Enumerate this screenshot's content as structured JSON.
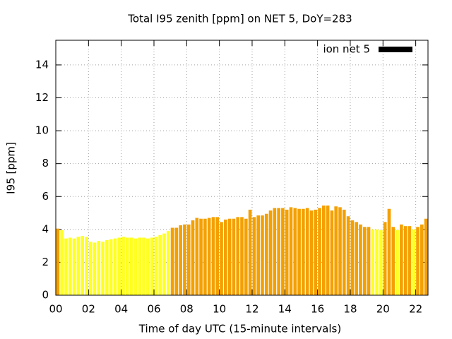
{
  "chart_data": {
    "type": "bar",
    "title": "Total I95 zenith [ppm] on NET 5, DoY=283",
    "x_label": "Time of day UTC (15-minute intervals)",
    "y_label": "I95 [ppm]",
    "x": [
      0,
      0.25,
      0.5,
      0.75,
      1,
      1.25,
      1.5,
      1.75,
      2,
      2.25,
      2.5,
      2.75,
      3,
      3.25,
      3.5,
      3.75,
      4,
      4.25,
      4.5,
      4.75,
      5,
      5.25,
      5.5,
      5.75,
      6,
      6.25,
      6.5,
      6.75,
      7,
      7.25,
      7.5,
      7.75,
      8,
      8.25,
      8.5,
      8.75,
      9,
      9.25,
      9.5,
      9.75,
      10,
      10.25,
      10.5,
      10.75,
      11,
      11.25,
      11.5,
      11.75,
      12,
      12.25,
      12.5,
      12.75,
      13,
      13.25,
      13.5,
      13.75,
      14,
      14.25,
      14.5,
      14.75,
      15,
      15.25,
      15.5,
      15.75,
      16,
      16.25,
      16.5,
      16.75,
      17,
      17.25,
      17.5,
      17.75,
      18,
      18.25,
      18.5,
      18.75,
      19,
      19.25,
      19.5,
      19.75,
      20,
      20.25,
      20.5,
      20.75,
      21,
      21.25,
      21.5,
      21.75,
      22,
      22.25,
      22.5
    ],
    "series": [
      {
        "name": "ion net 5",
        "color": "#000000",
        "values": [
          4.05,
          3.95,
          3.45,
          3.5,
          3.45,
          3.55,
          3.6,
          3.55,
          3.25,
          3.2,
          3.3,
          3.25,
          3.35,
          3.4,
          3.45,
          3.5,
          3.55,
          3.5,
          3.5,
          3.45,
          3.5,
          3.5,
          3.45,
          3.5,
          3.55,
          3.65,
          3.75,
          3.9,
          4.1,
          4.1,
          4.25,
          4.3,
          4.3,
          4.55,
          4.7,
          4.65,
          4.65,
          4.7,
          4.75,
          4.75,
          4.45,
          4.6,
          4.65,
          4.65,
          4.75,
          4.75,
          4.65,
          5.2,
          4.75,
          4.85,
          4.85,
          4.95,
          5.15,
          5.3,
          5.3,
          5.3,
          5.2,
          5.35,
          5.3,
          5.25,
          5.25,
          5.3,
          5.15,
          5.2,
          5.3,
          5.45,
          5.45,
          5.15,
          5.4,
          5.35,
          5.2,
          4.8,
          4.55,
          4.45,
          4.3,
          4.15,
          4.15,
          4.0,
          4.0,
          3.95,
          4.45,
          5.25,
          4.15,
          3.95,
          4.3,
          4.2,
          4.2,
          4.0,
          4.15,
          4.3,
          4.65
        ],
        "bar_colors": [
          "#f4a000",
          "#ffff22",
          "#ffff22",
          "#ffff22",
          "#ffff22",
          "#ffff22",
          "#ffff22",
          "#ffff22",
          "#ffff22",
          "#ffff22",
          "#ffff22",
          "#ffff22",
          "#ffff22",
          "#ffff22",
          "#ffff22",
          "#ffff22",
          "#ffff22",
          "#ffff22",
          "#ffff22",
          "#ffff22",
          "#ffff22",
          "#ffff22",
          "#ffff22",
          "#ffff22",
          "#ffff22",
          "#ffff22",
          "#ffff22",
          "#ffff22",
          "#f4a000",
          "#f4a000",
          "#f4a000",
          "#f4a000",
          "#f4a000",
          "#f4a000",
          "#f4a000",
          "#f4a000",
          "#f4a000",
          "#f4a000",
          "#f4a000",
          "#f4a000",
          "#f4a000",
          "#f4a000",
          "#f4a000",
          "#f4a000",
          "#f4a000",
          "#f4a000",
          "#f4a000",
          "#f4a000",
          "#f4a000",
          "#f4a000",
          "#f4a000",
          "#f4a000",
          "#f4a000",
          "#f4a000",
          "#f4a000",
          "#f4a000",
          "#f4a000",
          "#f4a000",
          "#f4a000",
          "#f4a000",
          "#f4a000",
          "#f4a000",
          "#f4a000",
          "#f4a000",
          "#f4a000",
          "#f4a000",
          "#f4a000",
          "#f4a000",
          "#f4a000",
          "#f4a000",
          "#f4a000",
          "#f4a000",
          "#f4a000",
          "#f4a000",
          "#f4a000",
          "#f4a000",
          "#f4a000",
          "#ffff22",
          "#ffff22",
          "#ffff22",
          "#f4a000",
          "#f4a000",
          "#f4a000",
          "#ffff22",
          "#f4a000",
          "#f4a000",
          "#f4a000",
          "#ffff22",
          "#f4a000",
          "#f4a000",
          "#f4a000"
        ]
      }
    ],
    "xlim": [
      0,
      22.75
    ],
    "ylim": [
      0,
      15.5
    ],
    "xticks": [
      {
        "value": 0,
        "label": "00"
      },
      {
        "value": 2,
        "label": "02"
      },
      {
        "value": 4,
        "label": "04"
      },
      {
        "value": 6,
        "label": "06"
      },
      {
        "value": 8,
        "label": "08"
      },
      {
        "value": 10,
        "label": "10"
      },
      {
        "value": 12,
        "label": "12"
      },
      {
        "value": 14,
        "label": "14"
      },
      {
        "value": 16,
        "label": "16"
      },
      {
        "value": 18,
        "label": "18"
      },
      {
        "value": 20,
        "label": "20"
      },
      {
        "value": 22,
        "label": "22"
      }
    ],
    "yticks": [
      0,
      2,
      4,
      6,
      8,
      10,
      12,
      14
    ],
    "grid": true,
    "legend": "top-right"
  }
}
